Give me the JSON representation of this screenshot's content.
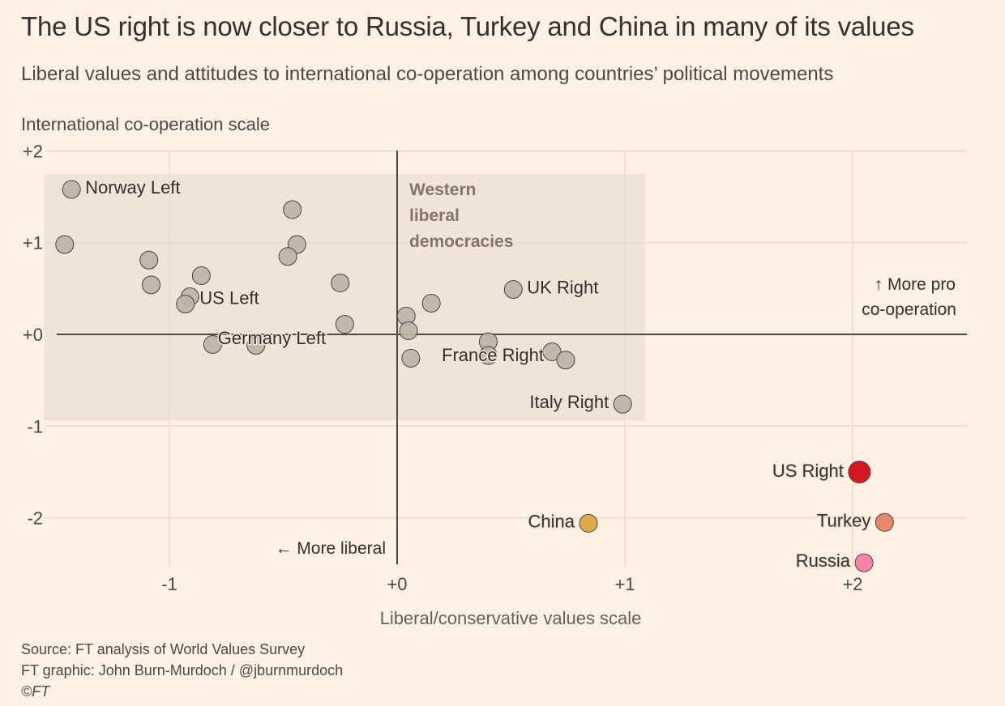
{
  "title": "The US right is now closer to Russia, Turkey and China in many of its values",
  "subtitle": "Liberal values and attitudes to international co-operation among countries’ political movements",
  "footer": {
    "source": "Source: FT analysis of World Values Survey",
    "credit": "FT graphic: John Burn-Murdoch / @jburnmurdoch",
    "copyright": "©FT"
  },
  "colors": {
    "background": "#fff1e5",
    "region_fill": "#f0e3d8",
    "point_default": "#bcb3aa",
    "point_stroke": "#4a4440",
    "us_right": "#d41a20",
    "turkey": "#e8876c",
    "russia": "#fb82a8",
    "china": "#e0aa48",
    "grid": "#e8d9cc",
    "axis": "#4d4845"
  },
  "chart_data": {
    "type": "scatter",
    "title": "The US right is now closer to Russia, Turkey and China in many of its values",
    "subtitle": "Liberal values and attitudes to international co-operation among countries’ political movements",
    "xlabel": "Liberal/conservative values scale",
    "ylabel": "International co-operation scale",
    "xlim": [
      -1.55,
      2.5
    ],
    "ylim": [
      -2.5,
      2.0
    ],
    "xticks": [
      {
        "value": -1,
        "label": "-1"
      },
      {
        "value": 0,
        "label": "+0"
      },
      {
        "value": 1,
        "label": "+1"
      },
      {
        "value": 2,
        "label": "+2"
      }
    ],
    "yticks": [
      {
        "value": 2,
        "label": "+2"
      },
      {
        "value": 1,
        "label": "+1"
      },
      {
        "value": 0,
        "label": "+0"
      },
      {
        "value": -1,
        "label": "-1"
      },
      {
        "value": -2,
        "label": "-2"
      }
    ],
    "grid": true,
    "region": {
      "label_lines": [
        "Western",
        "liberal",
        "democracies"
      ],
      "x": [
        -1.55,
        1.09
      ],
      "y": [
        -0.94,
        1.75
      ]
    },
    "annotations": {
      "more_liberal": "← More liberal",
      "more_coop_line1": "↑ More pro",
      "more_coop_line2": "co-operation"
    },
    "points": [
      {
        "x": -1.43,
        "y": 1.58,
        "label": "Norway Left",
        "color": "point_default",
        "label_pos": "right"
      },
      {
        "x": -1.46,
        "y": 0.98,
        "label": "",
        "color": "point_default"
      },
      {
        "x": -1.09,
        "y": 0.81,
        "label": "",
        "color": "point_default"
      },
      {
        "x": -1.08,
        "y": 0.54,
        "label": "",
        "color": "point_default"
      },
      {
        "x": -0.86,
        "y": 0.64,
        "label": "",
        "color": "point_default"
      },
      {
        "x": -0.91,
        "y": 0.41,
        "label": "US Left",
        "color": "point_default",
        "label_pos": "right"
      },
      {
        "x": -0.93,
        "y": 0.33,
        "label": "",
        "color": "point_default"
      },
      {
        "x": -0.81,
        "y": -0.11,
        "label": "",
        "color": "point_default"
      },
      {
        "x": -0.62,
        "y": -0.12,
        "label": "Germany Left",
        "color": "point_default",
        "label_pos": "center"
      },
      {
        "x": -0.46,
        "y": 1.36,
        "label": "",
        "color": "point_default"
      },
      {
        "x": -0.44,
        "y": 0.98,
        "label": "",
        "color": "point_default"
      },
      {
        "x": -0.48,
        "y": 0.85,
        "label": "",
        "color": "point_default"
      },
      {
        "x": -0.25,
        "y": 0.56,
        "label": "",
        "color": "point_default"
      },
      {
        "x": -0.23,
        "y": 0.11,
        "label": "",
        "color": "point_default"
      },
      {
        "x": 0.04,
        "y": 0.2,
        "label": "",
        "color": "point_default"
      },
      {
        "x": 0.15,
        "y": 0.34,
        "label": "",
        "color": "point_default"
      },
      {
        "x": 0.05,
        "y": 0.04,
        "label": "",
        "color": "point_default"
      },
      {
        "x": 0.06,
        "y": -0.26,
        "label": "",
        "color": "point_default"
      },
      {
        "x": 0.4,
        "y": -0.08,
        "label": "",
        "color": "point_default"
      },
      {
        "x": 0.4,
        "y": -0.23,
        "label": "France Right",
        "color": "point_default",
        "label_pos": "center"
      },
      {
        "x": 0.51,
        "y": 0.49,
        "label": "UK Right",
        "color": "point_default",
        "label_pos": "right"
      },
      {
        "x": 0.68,
        "y": -0.19,
        "label": "",
        "color": "point_default"
      },
      {
        "x": 0.74,
        "y": -0.28,
        "label": "",
        "color": "point_default"
      },
      {
        "x": 0.99,
        "y": -0.76,
        "label": "Italy Right",
        "color": "point_default",
        "label_pos": "left"
      },
      {
        "x": 0.84,
        "y": -2.06,
        "label": "China",
        "color": "china",
        "label_pos": "left"
      },
      {
        "x": 2.03,
        "y": -1.5,
        "label": "US Right",
        "color": "us_right",
        "label_pos": "left",
        "highlight": true
      },
      {
        "x": 2.14,
        "y": -2.05,
        "label": "Turkey",
        "color": "turkey",
        "label_pos": "left"
      },
      {
        "x": 2.05,
        "y": -2.49,
        "label": "Russia",
        "color": "russia",
        "label_pos": "left"
      }
    ]
  }
}
